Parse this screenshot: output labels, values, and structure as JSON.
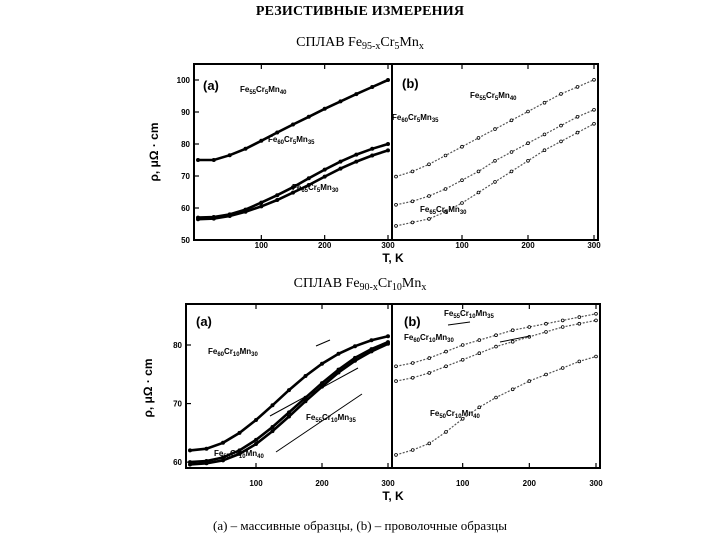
{
  "page": {
    "title": "РЕЗИСТИВНЫЕ ИЗМЕРЕНИЯ",
    "caption": "(a) – массивные образцы, (b) – проволочные образцы"
  },
  "figures": [
    {
      "alloy": {
        "prefix": "СПЛАВ Fe",
        "sub1": "95-x",
        "mid1": "Cr",
        "sub2": "5",
        "mid2": "Mn",
        "sub3": "x"
      },
      "ylabel": "ρ, μΩ · cm",
      "xlabel": "T, K",
      "panels": [
        {
          "tag": "(a)",
          "labels": [
            {
              "el": "Fe",
              "n1": "55",
              "el2": "Cr",
              "n2": "5",
              "el3": "Mn",
              "n3": "40"
            },
            {
              "el": "Fe",
              "n1": "60",
              "el2": "Cr",
              "n2": "5",
              "el3": "Mn",
              "n3": "35"
            },
            {
              "el": "Fe",
              "n1": "65",
              "el2": "Cr",
              "n2": "5",
              "el3": "Mn",
              "n3": "30"
            }
          ]
        },
        {
          "tag": "(b)",
          "labels": [
            {
              "el": "Fe",
              "n1": "55",
              "el2": "Cr",
              "n2": "5",
              "el3": "Mn",
              "n3": "40"
            },
            {
              "el": "Fe",
              "n1": "60",
              "el2": "Cr",
              "n2": "5",
              "el3": "Mn",
              "n3": "35"
            },
            {
              "el": "Fe",
              "n1": "65",
              "el2": "Cr",
              "n2": "5",
              "el3": "Mn",
              "n3": "30"
            }
          ]
        }
      ]
    },
    {
      "alloy": {
        "prefix": "СПЛАВ  Fe",
        "sub1": "90-x",
        "mid1": "Cr",
        "sub2": "10",
        "mid2": "Mn",
        "sub3": "x"
      },
      "ylabel": "ρ, μΩ · cm",
      "xlabel": "T, K",
      "panels": [
        {
          "tag": "(a)",
          "labels": [
            {
              "el": "Fe",
              "n1": "60",
              "el2": "Cr",
              "n2": "10",
              "el3": "Mn",
              "n3": "30"
            },
            {
              "el": "Fe",
              "n1": "55",
              "el2": "Cr",
              "n2": "10",
              "el3": "Mn",
              "n3": "35"
            },
            {
              "el": "Fe",
              "n1": "55",
              "el2": "Cr",
              "n2": "10",
              "el3": "Mn",
              "n3": "40"
            }
          ]
        },
        {
          "tag": "(b)",
          "labels": [
            {
              "el": "Fe",
              "n1": "55",
              "el2": "Cr",
              "n2": "10",
              "el3": "Mn",
              "n3": "35"
            },
            {
              "el": "Fe",
              "n1": "60",
              "el2": "Cr",
              "n2": "10",
              "el3": "Mn",
              "n3": "30"
            },
            {
              "el": "Fe",
              "n1": "50",
              "el2": "Cr",
              "n2": "10",
              "el3": "Mn",
              "n3": "40"
            }
          ]
        }
      ]
    }
  ],
  "chart_data": [
    {
      "type": "line",
      "title": "СПЛАВ Fe95-xCr5Mnx (a)",
      "xlabel": "T, K",
      "ylabel": "ρ, μΩ · cm",
      "xlim": [
        0,
        300
      ],
      "ylim": [
        50,
        105
      ],
      "xticks": [
        100,
        200,
        300
      ],
      "yticks": [
        50,
        60,
        70,
        80,
        90,
        100
      ],
      "series": [
        {
          "name": "Fe55Cr5Mn40",
          "x": [
            0,
            25,
            50,
            75,
            100,
            125,
            150,
            175,
            200,
            225,
            250,
            275,
            300
          ],
          "y": [
            75,
            75,
            76.5,
            78.5,
            81,
            83.6,
            86.1,
            88.5,
            91,
            93.3,
            95.6,
            97.8,
            100
          ]
        },
        {
          "name": "Fe60Cr5Mn35",
          "x": [
            0,
            25,
            50,
            75,
            100,
            125,
            150,
            175,
            200,
            225,
            250,
            275,
            300
          ],
          "y": [
            57,
            57.2,
            58,
            59.5,
            61.7,
            64,
            66.5,
            69.3,
            72,
            74.5,
            76.7,
            78.5,
            80
          ]
        },
        {
          "name": "Fe65Cr5Mn30",
          "x": [
            0,
            25,
            50,
            75,
            100,
            125,
            150,
            175,
            200,
            225,
            250,
            275,
            300
          ],
          "y": [
            56.5,
            56.7,
            57.5,
            58.8,
            60.5,
            62.5,
            64.8,
            67.2,
            69.8,
            72.3,
            74.5,
            76.4,
            78
          ]
        }
      ]
    },
    {
      "type": "line",
      "title": "СПЛАВ Fe95-xCr5Mnx (b)",
      "xlabel": "T, K",
      "xlim": [
        0,
        300
      ],
      "ylim": [
        0,
        1
      ],
      "xticks": [
        100,
        200,
        300
      ],
      "series": [
        {
          "name": "Fe55Cr5Mn40",
          "x": [
            0,
            25,
            50,
            75,
            100,
            125,
            150,
            175,
            200,
            225,
            250,
            275,
            300
          ],
          "y": [
            0.36,
            0.39,
            0.43,
            0.48,
            0.53,
            0.58,
            0.63,
            0.68,
            0.73,
            0.78,
            0.83,
            0.87,
            0.91
          ]
        },
        {
          "name": "Fe60Cr5Mn35",
          "x": [
            0,
            25,
            50,
            75,
            100,
            125,
            150,
            175,
            200,
            225,
            250,
            275,
            300
          ],
          "y": [
            0.2,
            0.22,
            0.25,
            0.29,
            0.34,
            0.39,
            0.45,
            0.5,
            0.55,
            0.6,
            0.65,
            0.7,
            0.74
          ]
        },
        {
          "name": "Fe65Cr5Mn30",
          "x": [
            0,
            25,
            50,
            75,
            100,
            125,
            150,
            175,
            200,
            225,
            250,
            275,
            300
          ],
          "y": [
            0.08,
            0.1,
            0.12,
            0.16,
            0.21,
            0.27,
            0.33,
            0.39,
            0.45,
            0.51,
            0.56,
            0.61,
            0.66
          ]
        }
      ]
    },
    {
      "type": "line",
      "title": "СПЛАВ Fe90-xCr10Mnx (a)",
      "xlabel": "T, K",
      "ylabel": "ρ, μΩ · cm",
      "xlim": [
        0,
        300
      ],
      "ylim": [
        59,
        87
      ],
      "xticks": [
        100,
        200,
        300
      ],
      "yticks": [
        60,
        70,
        80
      ],
      "series": [
        {
          "name": "Fe60Cr10Mn30",
          "x": [
            0,
            25,
            50,
            75,
            100,
            125,
            150,
            175,
            200,
            225,
            250,
            275,
            300
          ],
          "y": [
            62,
            62.3,
            63.3,
            65,
            67.2,
            69.7,
            72.3,
            74.7,
            76.8,
            78.5,
            79.8,
            80.8,
            81.5
          ]
        },
        {
          "name": "Fe55Cr10Mn35",
          "x": [
            0,
            25,
            50,
            75,
            100,
            125,
            150,
            175,
            200,
            225,
            250,
            275,
            300
          ],
          "y": [
            60,
            60.2,
            60.8,
            62,
            63.8,
            66,
            68.5,
            71,
            73.5,
            75.8,
            77.8,
            79.3,
            80.5
          ]
        },
        {
          "name": "Fe55Cr10Mn40",
          "x": [
            0,
            25,
            50,
            75,
            100,
            125,
            150,
            175,
            200,
            225,
            250,
            275,
            300
          ],
          "y": [
            59.6,
            59.8,
            60.3,
            61.4,
            63.1,
            65.3,
            67.8,
            70.4,
            72.9,
            75.3,
            77.3,
            78.9,
            80.2
          ]
        }
      ]
    },
    {
      "type": "line",
      "title": "СПЛАВ Fe90-xCr10Mnx (b)",
      "xlabel": "T, K",
      "xlim": [
        0,
        300
      ],
      "ylim": [
        0,
        1
      ],
      "xticks": [
        100,
        200,
        300
      ],
      "series": [
        {
          "name": "Fe55Cr10Mn35",
          "x": [
            0,
            25,
            50,
            75,
            100,
            125,
            150,
            175,
            200,
            225,
            250,
            275,
            300
          ],
          "y": [
            0.62,
            0.64,
            0.67,
            0.71,
            0.75,
            0.78,
            0.81,
            0.84,
            0.86,
            0.88,
            0.9,
            0.92,
            0.94
          ]
        },
        {
          "name": "Fe60Cr10Mn30",
          "x": [
            0,
            25,
            50,
            75,
            100,
            125,
            150,
            175,
            200,
            225,
            250,
            275,
            300
          ],
          "y": [
            0.53,
            0.55,
            0.58,
            0.62,
            0.66,
            0.7,
            0.74,
            0.77,
            0.8,
            0.83,
            0.86,
            0.88,
            0.9
          ]
        },
        {
          "name": "Fe50Cr10Mn40",
          "x": [
            0,
            25,
            50,
            75,
            100,
            125,
            150,
            175,
            200,
            225,
            250,
            275,
            300
          ],
          "y": [
            0.08,
            0.11,
            0.15,
            0.22,
            0.3,
            0.37,
            0.43,
            0.48,
            0.53,
            0.57,
            0.61,
            0.65,
            0.68
          ]
        }
      ]
    }
  ]
}
